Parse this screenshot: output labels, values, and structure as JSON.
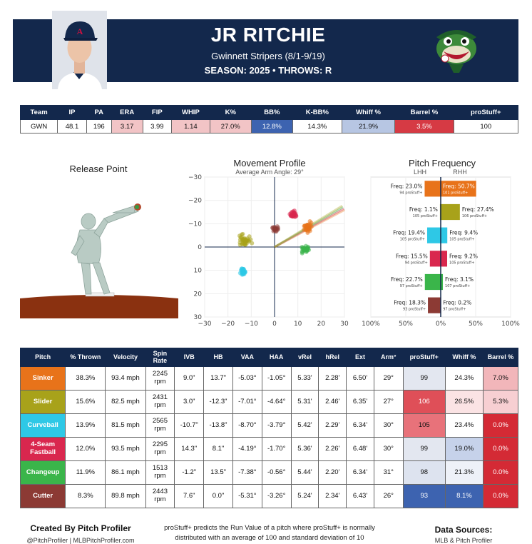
{
  "header": {
    "name": "JR RITCHIE",
    "team_dates": "Gwinnett Stripers (8/1-9/19)",
    "season_line": "SEASON: 2025 • THROWS: R"
  },
  "stats": {
    "headers": [
      "Team",
      "IP",
      "PA",
      "ERA",
      "FIP",
      "WHIP",
      "K%",
      "BB%",
      "K-BB%",
      "Whiff %",
      "Barrel %",
      "proStuff+"
    ],
    "values": [
      "GWN",
      "48.1",
      "196",
      "3.17",
      "3.99",
      "1.14",
      "27.0%",
      "12.8%",
      "14.3%",
      "21.9%",
      "3.5%",
      "100"
    ],
    "colors": [
      "#ffffff",
      "#ffffff",
      "#ffffff",
      "#f2c4c6",
      "#ffffff",
      "#f2c4c6",
      "#f2c4c6",
      "#3d63b0",
      "#ffffff",
      "#b7c6e3",
      "#d63a44",
      "#ffffff"
    ],
    "text_colors": [
      "#111",
      "#111",
      "#111",
      "#111",
      "#111",
      "#111",
      "#111",
      "#ffffff",
      "#111",
      "#111",
      "#ffffff",
      "#111"
    ]
  },
  "release": {
    "title": "Release Point"
  },
  "movement": {
    "title": "Movement Profile",
    "subtitle": "Average Arm Angle: 29°",
    "ticks": [
      "30",
      "20",
      "10",
      "0",
      "−10",
      "−20",
      "−30"
    ],
    "xticks": [
      "−30",
      "−20",
      "−10",
      "0",
      "10",
      "20",
      "30"
    ],
    "clusters": [
      {
        "pitch": "Sinker",
        "color": "#e8731a",
        "hb": 14.5,
        "ivb": 8.5,
        "spread_x": 2.5,
        "spread_y": 3.0,
        "n": 40
      },
      {
        "pitch": "Slider",
        "color": "#a8a21a",
        "hb": -12.5,
        "ivb": 3.0,
        "spread_x": 3.5,
        "spread_y": 3.5,
        "n": 40
      },
      {
        "pitch": "Curveball",
        "color": "#2ec8e6",
        "hb": -13.5,
        "ivb": -10.5,
        "spread_x": 2.0,
        "spread_y": 1.8,
        "n": 30
      },
      {
        "pitch": "4-Seam Fastball",
        "color": "#d9274e",
        "hb": 8.0,
        "ivb": 14.0,
        "spread_x": 2.2,
        "spread_y": 2.0,
        "n": 30
      },
      {
        "pitch": "Changeup",
        "color": "#3ab54a",
        "hb": 13.5,
        "ivb": -1.2,
        "spread_x": 2.2,
        "spread_y": 2.4,
        "n": 30
      },
      {
        "pitch": "Cutter",
        "color": "#8c3a34",
        "hb": 0.5,
        "ivb": 7.7,
        "spread_x": 2.0,
        "spread_y": 1.5,
        "n": 20
      }
    ]
  },
  "frequency": {
    "title": "Pitch Frequency",
    "lhh": "LHH",
    "rhh": "RHH",
    "xticks": [
      "100%",
      "50%",
      "0%",
      "50%",
      "100%"
    ],
    "rows": [
      {
        "color": "#e8731a",
        "lhh": 23.0,
        "rhh": 50.7,
        "lhh_label": "Freq: 23.0%",
        "rhh_label": "Freq: 50.7%",
        "lhh_sub": "94 proStuff+",
        "rhh_sub": "101 proStuff+"
      },
      {
        "color": "#a8a21a",
        "lhh": 1.1,
        "rhh": 27.4,
        "lhh_label": "Freq: 1.1%",
        "rhh_label": "Freq: 27.4%",
        "lhh_sub": "105 proStuff+",
        "rhh_sub": "106 proStuff+"
      },
      {
        "color": "#2ec8e6",
        "lhh": 19.4,
        "rhh": 9.4,
        "lhh_label": "Freq: 19.4%",
        "rhh_label": "Freq: 9.4%",
        "lhh_sub": "105 proStuff+",
        "rhh_sub": "105 proStuff+"
      },
      {
        "color": "#d9274e",
        "lhh": 15.5,
        "rhh": 9.2,
        "lhh_label": "Freq: 15.5%",
        "rhh_label": "Freq: 9.2%",
        "lhh_sub": "94 proStuff+",
        "rhh_sub": "105 proStuff+"
      },
      {
        "color": "#3ab54a",
        "lhh": 22.7,
        "rhh": 3.1,
        "lhh_label": "Freq: 22.7%",
        "rhh_label": "Freq: 3.1%",
        "lhh_sub": "97 proStuff+",
        "rhh_sub": "107 proStuff+"
      },
      {
        "color": "#8c3a34",
        "lhh": 18.3,
        "rhh": 0.2,
        "lhh_label": "Freq: 18.3%",
        "rhh_label": "Freq: 0.2%",
        "lhh_sub": "93 proStuff+",
        "rhh_sub": "97 proStuff+"
      }
    ]
  },
  "pitch_table": {
    "headers": [
      "Pitch",
      "% Thrown",
      "Velocity",
      "Spin Rate",
      "IVB",
      "HB",
      "VAA",
      "HAA",
      "vRel",
      "hRel",
      "Ext",
      "Arm°",
      "proStuff+",
      "Whiff %",
      "Barrel %"
    ],
    "rows": [
      {
        "name": "Sinker",
        "color": "#e8731a",
        "cells": [
          "38.3%",
          "93.4 mph",
          "2245 rpm",
          "9.0\"",
          "13.7\"",
          "-5.03°",
          "-1.05°",
          "5.33'",
          "2.28'",
          "6.50'",
          "29°",
          "99",
          "24.3%",
          "7.0%"
        ],
        "ps_bg": "#e3e7f0",
        "ps_fg": "#111",
        "wh_bg": "#ffffff",
        "wh_fg": "#111",
        "br_bg": "#f2b6ba",
        "br_fg": "#111"
      },
      {
        "name": "Slider",
        "color": "#a8a21a",
        "cells": [
          "15.6%",
          "82.5 mph",
          "2431 rpm",
          "3.0\"",
          "-12.3\"",
          "-7.01°",
          "-4.64°",
          "5.31'",
          "2.46'",
          "6.35'",
          "27°",
          "106",
          "26.5%",
          "5.3%"
        ],
        "ps_bg": "#df4f58",
        "ps_fg": "#ffffff",
        "wh_bg": "#fbe3e4",
        "wh_fg": "#111",
        "br_bg": "#f7cfd2",
        "br_fg": "#111"
      },
      {
        "name": "Curveball",
        "color": "#2ec8e6",
        "cells": [
          "13.9%",
          "81.5 mph",
          "2565 rpm",
          "-10.7\"",
          "-13.8\"",
          "-8.70°",
          "-3.79°",
          "5.42'",
          "2.29'",
          "6.34'",
          "30°",
          "105",
          "23.4%",
          "0.0%"
        ],
        "ps_bg": "#e8727a",
        "ps_fg": "#111",
        "wh_bg": "#ffffff",
        "wh_fg": "#111",
        "br_bg": "#d42a35",
        "br_fg": "#ffffff"
      },
      {
        "name": "4-Seam Fastball",
        "color": "#d9274e",
        "cells": [
          "12.0%",
          "93.5 mph",
          "2295 rpm",
          "14.3\"",
          "8.1\"",
          "-4.19°",
          "-1.70°",
          "5.36'",
          "2.26'",
          "6.48'",
          "30°",
          "99",
          "19.0%",
          "0.0%"
        ],
        "ps_bg": "#e3e7f0",
        "ps_fg": "#111",
        "wh_bg": "#c6d2ea",
        "wh_fg": "#111",
        "br_bg": "#d42a35",
        "br_fg": "#ffffff"
      },
      {
        "name": "Changeup",
        "color": "#3ab54a",
        "cells": [
          "11.9%",
          "86.1 mph",
          "1513 rpm",
          "-1.2\"",
          "13.5\"",
          "-7.38°",
          "-0.56°",
          "5.44'",
          "2.20'",
          "6.34'",
          "31°",
          "98",
          "21.3%",
          "0.0%"
        ],
        "ps_bg": "#dde3ef",
        "ps_fg": "#111",
        "wh_bg": "#eef1f8",
        "wh_fg": "#111",
        "br_bg": "#d42a35",
        "br_fg": "#ffffff"
      },
      {
        "name": "Cutter",
        "color": "#8c3a34",
        "cells": [
          "8.3%",
          "89.8 mph",
          "2443 rpm",
          "7.6\"",
          "0.0\"",
          "-5.31°",
          "-3.26°",
          "5.24'",
          "2.34'",
          "6.43'",
          "26°",
          "93",
          "8.1%",
          "0.0%"
        ],
        "ps_bg": "#3d63b0",
        "ps_fg": "#ffffff",
        "wh_bg": "#3d63b0",
        "wh_fg": "#ffffff",
        "br_bg": "#d42a35",
        "br_fg": "#ffffff"
      }
    ]
  },
  "footer": {
    "created": "Created By Pitch Profiler",
    "handles": "@PitchProfiler | MLBPitchProfiler.com",
    "note": "proStuff+ predicts the Run Value of a pitch where proStuff+ is normally distributed with an average of 100 and standard deviation of 10",
    "sources_title": "Data Sources:",
    "sources": "MLB & Pitch Profiler"
  }
}
